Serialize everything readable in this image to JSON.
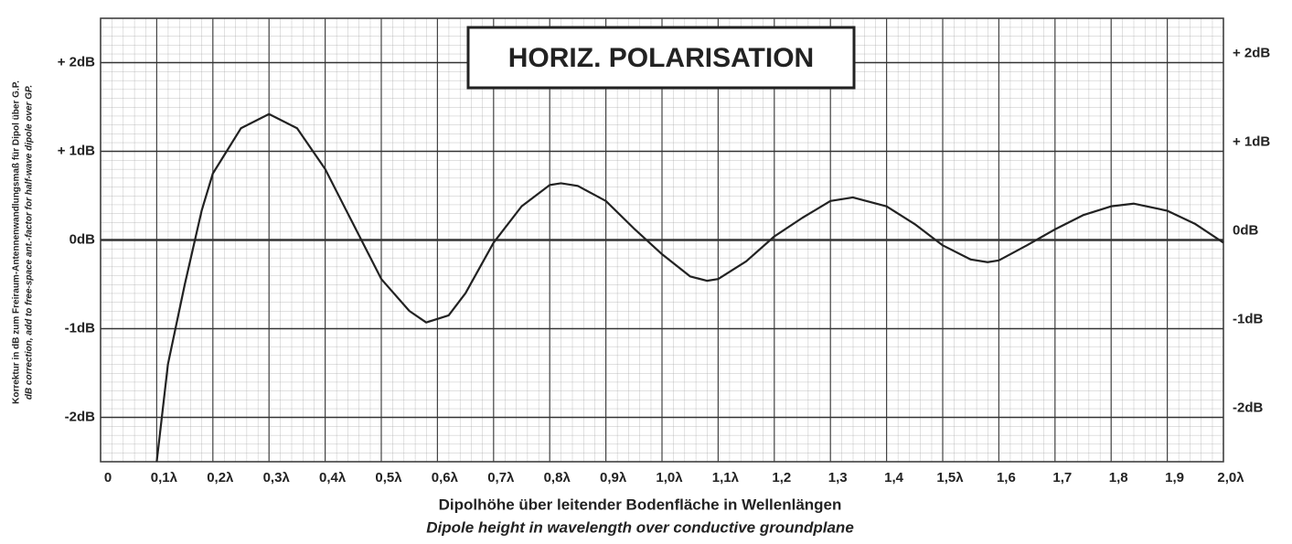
{
  "chart_data": {
    "type": "line",
    "title": "HORIZ. POLARISATION",
    "x_label": "Dipolhöhe über leitender Bodenfläche in Wellenlängen",
    "x_label_en": "Dipole height in wavelength over conductive groundplane",
    "y_label": "Korrektur in dB zum Freiraum-Antennenwandlungsmaß für Dipol über G.P.",
    "y_label_en": "dB correction, add to free-space ant.-factor for half-wave dipole over GP.",
    "xlim": [
      0,
      2.0
    ],
    "ylim": [
      -2.5,
      2.5
    ],
    "y2lim": [
      -2.5,
      2.5
    ],
    "grid": true,
    "xticks": [
      0,
      {
        "value": 0.1,
        "label": "0,1λ"
      },
      {
        "value": 0.2,
        "label": "0,2λ"
      },
      {
        "value": 0.3,
        "label": "0,3λ"
      },
      {
        "value": 0.4,
        "label": "0,4λ"
      },
      {
        "value": 0.5,
        "label": "0,5λ"
      },
      {
        "value": 0.6,
        "label": "0,6λ"
      },
      {
        "value": 0.7,
        "label": "0,7λ"
      },
      {
        "value": 0.8,
        "label": "0,8λ"
      },
      {
        "value": 0.9,
        "label": "0,9λ"
      },
      {
        "value": 1.0,
        "label": "1,0λ"
      },
      {
        "value": 1.1,
        "label": "1,1λ"
      },
      {
        "value": 1.2,
        "label": "1,2"
      },
      {
        "value": 1.3,
        "label": "1,3"
      },
      {
        "value": 1.4,
        "label": "1,4"
      },
      {
        "value": 1.5,
        "label": "1,5λ"
      },
      {
        "value": 1.6,
        "label": "1,6"
      },
      {
        "value": 1.7,
        "label": "1,7"
      },
      {
        "value": 1.8,
        "label": "1,8"
      },
      {
        "value": 1.9,
        "label": "1,9"
      },
      {
        "value": 2.0,
        "label": "2,0λ"
      }
    ],
    "yticks": [
      {
        "value": 2,
        "label": "+ 2dB"
      },
      {
        "value": 1,
        "label": "+ 1dB"
      },
      {
        "value": 0,
        "label": "0dB"
      },
      {
        "value": -1,
        "label": "-1dB"
      },
      {
        "value": -2,
        "label": "-2dB"
      }
    ],
    "y2ticks": [
      {
        "value": 2,
        "label": "+ 2dB"
      },
      {
        "value": 1,
        "label": "+ 1dB"
      },
      {
        "value": 0,
        "label": "0dB"
      },
      {
        "value": -1,
        "label": "-1dB"
      },
      {
        "value": -2,
        "label": "-2dB"
      }
    ],
    "x": [
      0.1,
      0.12,
      0.15,
      0.18,
      0.2,
      0.25,
      0.3,
      0.35,
      0.4,
      0.45,
      0.5,
      0.55,
      0.58,
      0.62,
      0.65,
      0.7,
      0.75,
      0.8,
      0.82,
      0.85,
      0.9,
      0.95,
      1.0,
      1.05,
      1.08,
      1.1,
      1.15,
      1.2,
      1.25,
      1.3,
      1.34,
      1.4,
      1.45,
      1.5,
      1.55,
      1.58,
      1.6,
      1.65,
      1.7,
      1.75,
      1.8,
      1.84,
      1.9,
      1.95,
      2.0
    ],
    "series": [
      {
        "color": "#222222",
        "values": [
          -2.5,
          -1.4,
          -0.5,
          0.33,
          0.75,
          1.26,
          1.42,
          1.26,
          0.8,
          0.18,
          -0.44,
          -0.8,
          -0.93,
          -0.85,
          -0.6,
          -0.03,
          0.38,
          0.62,
          0.64,
          0.61,
          0.44,
          0.13,
          -0.16,
          -0.41,
          -0.46,
          -0.44,
          -0.24,
          0.04,
          0.25,
          0.44,
          0.48,
          0.38,
          0.18,
          -0.06,
          -0.22,
          -0.25,
          -0.23,
          -0.06,
          0.12,
          0.28,
          0.38,
          0.41,
          0.33,
          0.18,
          -0.03
        ]
      }
    ]
  }
}
